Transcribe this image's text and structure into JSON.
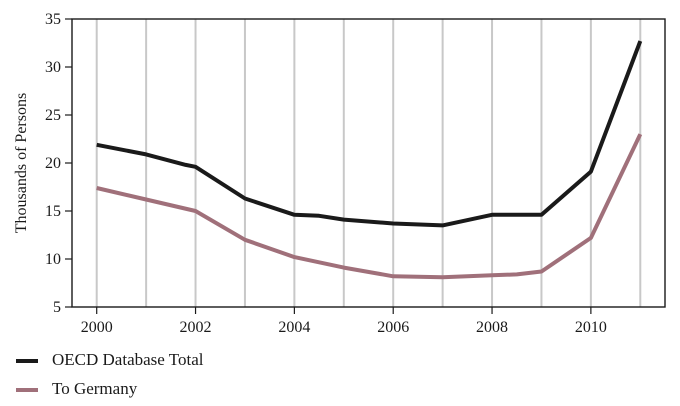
{
  "chart_data": {
    "type": "line",
    "ylabel": "Thousands of Persons",
    "xlabel": "",
    "title": "",
    "xlim": [
      1999.5,
      2011.5
    ],
    "ylim": [
      5,
      35
    ],
    "x_ticks": [
      2000,
      2002,
      2004,
      2006,
      2008,
      2010
    ],
    "y_ticks": [
      5,
      10,
      15,
      20,
      25,
      30,
      35
    ],
    "grid": "vertical",
    "legend": "bottom-left",
    "series": [
      {
        "name": "OECD Database Total",
        "color": "#1a1a1a",
        "x": [
          2000,
          2001,
          2001.8,
          2002,
          2003,
          2004,
          2004.5,
          2005,
          2006,
          2007,
          2008,
          2009,
          2010,
          2011
        ],
        "y": [
          21.9,
          20.9,
          19.8,
          19.6,
          16.3,
          14.6,
          14.5,
          14.1,
          13.7,
          13.5,
          14.6,
          14.6,
          19.1,
          32.7
        ]
      },
      {
        "name": "To Germany",
        "color": "#a0707a",
        "x": [
          2000,
          2001,
          2002,
          2003,
          2004,
          2005,
          2006,
          2007,
          2008,
          2008.5,
          2009,
          2010,
          2011
        ],
        "y": [
          17.4,
          16.2,
          15.0,
          12.0,
          10.2,
          9.1,
          8.2,
          8.1,
          8.3,
          8.4,
          8.7,
          12.2,
          23.0
        ]
      }
    ]
  }
}
